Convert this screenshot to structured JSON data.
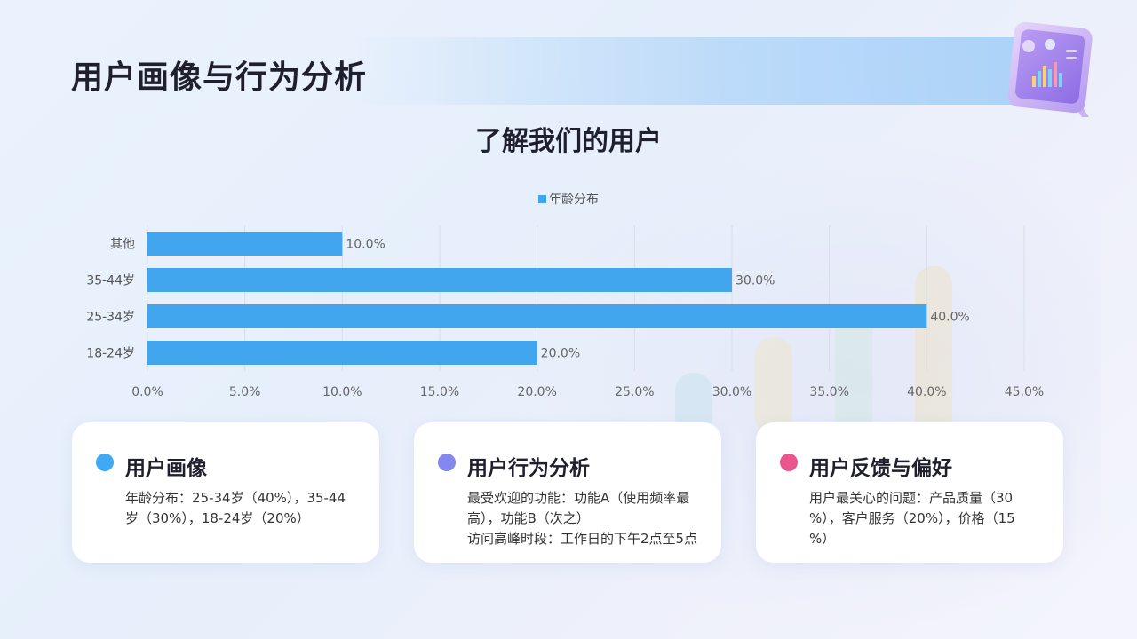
{
  "header": {
    "title": "用户画像与行为分析"
  },
  "chart_section": {
    "subtitle": "了解我们的用户"
  },
  "chart_data": {
    "type": "bar",
    "orientation": "horizontal",
    "categories": [
      "其他",
      "35-44岁",
      "25-34岁",
      "18-24岁"
    ],
    "series": [
      {
        "name": "年龄分布",
        "values": [
          10.0,
          30.0,
          40.0,
          20.0
        ],
        "color": "#41a6ee"
      }
    ],
    "data_labels": [
      "10.0%",
      "30.0%",
      "40.0%",
      "20.0%"
    ],
    "x_ticks": [
      "0.0%",
      "5.0%",
      "10.0%",
      "15.0%",
      "20.0%",
      "25.0%",
      "30.0%",
      "35.0%",
      "40.0%",
      "45.0%"
    ],
    "xlim": [
      0,
      45
    ],
    "grid": true,
    "legend_position": "top"
  },
  "cards": [
    {
      "title": "用户画像",
      "dot_color": "#3fa9f5",
      "lines": [
        "年龄分布：25-34岁（40%），35-44",
        "岁（30%），18-24岁（20%）"
      ]
    },
    {
      "title": "用户行为分析",
      "dot_color": "#8387ee",
      "lines": [
        "最受欢迎的功能：功能A（使用频率最",
        "高），功能B（次之）",
        "访问高峰时段：工作日的下午2点至5点"
      ]
    },
    {
      "title": "用户反馈与偏好",
      "dot_color": "#e8558f",
      "lines": [
        "用户最关心的问题：产品质量（30",
        "%），客户服务（20%），价格（15",
        "%）"
      ]
    }
  ],
  "decor": {
    "icon": "analytics-tablet-icon"
  }
}
